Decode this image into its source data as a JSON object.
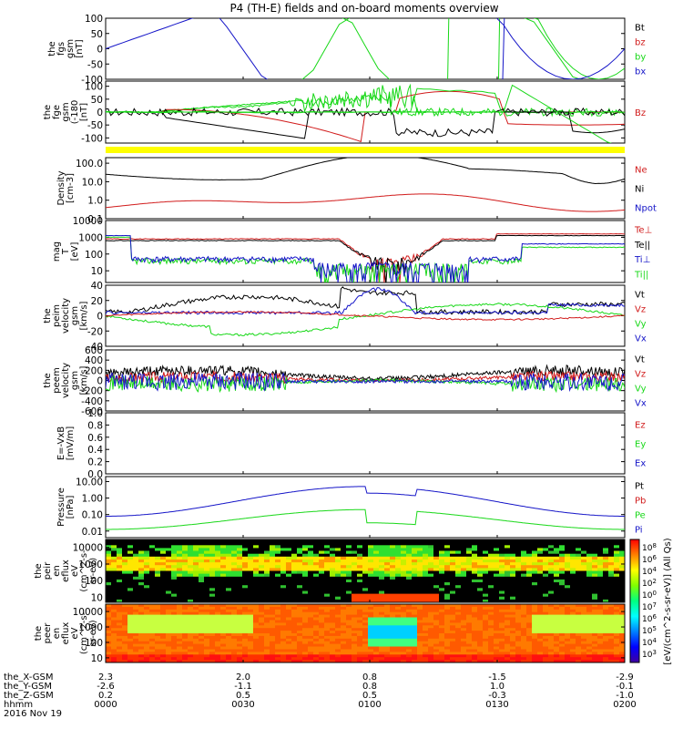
{
  "title": "P4 (TH-E) fields and on-board moments overview",
  "colors": {
    "black": "#000000",
    "red": "#d11b1b",
    "green": "#18d818",
    "blue": "#1515c8",
    "yellow": "#ffff00"
  },
  "chart_data": [
    {
      "type": "line",
      "id": "fgs_gsm",
      "ylabel": [
        "the",
        "fgs",
        "gsm",
        "[nT]"
      ],
      "ylim": [
        -100,
        100
      ],
      "ticks": [
        "100",
        "50",
        "0",
        "-50",
        "-100"
      ],
      "tick_values": [
        100,
        50,
        0,
        -50,
        -100
      ],
      "legend": [
        {
          "text": "Bt",
          "color": "black"
        },
        {
          "text": "bz",
          "color": "red"
        },
        {
          "text": "by",
          "color": "green"
        },
        {
          "text": "bx",
          "color": "blue"
        }
      ]
    },
    {
      "type": "line",
      "id": "fge_gsm",
      "ylabel": [
        "the",
        "fge",
        "gsm",
        "(-180",
        "[nT]"
      ],
      "ylim": [
        -120,
        120
      ],
      "ticks": [
        "100",
        "50",
        "0",
        "-50",
        "-100"
      ],
      "tick_values": [
        100,
        50,
        0,
        -50,
        -100
      ],
      "legend": [
        {
          "text": "Bz",
          "color": "red"
        }
      ]
    },
    {
      "type": "line",
      "id": "density",
      "ylabel": [
        "Density",
        "[cm-3]"
      ],
      "ylim": [
        0.1,
        200
      ],
      "log": true,
      "ticks": [
        "100.0",
        "10.0",
        "1.0",
        "0.1"
      ],
      "tick_values": [
        100,
        10,
        1,
        0.1
      ],
      "legend": [
        {
          "text": "Ne",
          "color": "red"
        },
        {
          "text": "Ni",
          "color": "black"
        },
        {
          "text": "Npot",
          "color": "blue"
        }
      ]
    },
    {
      "type": "line",
      "id": "temperature",
      "ylabel": [
        "mag",
        "T",
        "[eV]"
      ],
      "ylim": [
        2,
        10000
      ],
      "log": true,
      "ticks": [
        "10000",
        "1000",
        "100",
        "10"
      ],
      "tick_values": [
        10000,
        1000,
        100,
        10
      ],
      "legend": [
        {
          "text": "Te⊥",
          "color": "red"
        },
        {
          "text": "Te||",
          "color": "black"
        },
        {
          "text": "Ti⊥",
          "color": "blue"
        },
        {
          "text": "Ti||",
          "color": "green"
        }
      ]
    },
    {
      "type": "line",
      "id": "peim_velocity",
      "ylabel": [
        "the",
        "peim",
        "velocity",
        "gsm",
        "[km/s]"
      ],
      "ylim": [
        -40,
        40
      ],
      "ticks": [
        "40",
        "20",
        "0",
        "-20",
        "-40"
      ],
      "tick_values": [
        40,
        20,
        0,
        -20,
        -40
      ],
      "legend": [
        {
          "text": "Vt",
          "color": "black"
        },
        {
          "text": "Vz",
          "color": "red"
        },
        {
          "text": "Vy",
          "color": "green"
        },
        {
          "text": "Vx",
          "color": "blue"
        }
      ]
    },
    {
      "type": "line",
      "id": "peem_velocity",
      "ylabel": [
        "the",
        "peem",
        "velocity",
        "gsm",
        "[km/s]"
      ],
      "ylim": [
        -600,
        600
      ],
      "ticks": [
        "600",
        "400",
        "200",
        "0",
        "-200",
        "-400",
        "-600"
      ],
      "tick_values": [
        600,
        400,
        200,
        0,
        -200,
        -400,
        -600
      ],
      "legend": [
        {
          "text": "Vt",
          "color": "black"
        },
        {
          "text": "Vz",
          "color": "red"
        },
        {
          "text": "Vy",
          "color": "green"
        },
        {
          "text": "Vx",
          "color": "blue"
        }
      ]
    },
    {
      "type": "line",
      "id": "efield",
      "ylabel": [
        "E=-VxB",
        "[mV/m]"
      ],
      "ylim": [
        0,
        1
      ],
      "ticks": [
        "1.0",
        "0.8",
        "0.6",
        "0.4",
        "0.2",
        "0.0"
      ],
      "tick_values": [
        1.0,
        0.8,
        0.6,
        0.4,
        0.2,
        0.0
      ],
      "legend": [
        {
          "text": "Ez",
          "color": "red"
        },
        {
          "text": "Ey",
          "color": "green"
        },
        {
          "text": "Ex",
          "color": "blue"
        }
      ]
    },
    {
      "type": "line",
      "id": "pressure",
      "ylabel": [
        "Pressure",
        "[nPa]"
      ],
      "ylim": [
        0.004,
        20
      ],
      "log": true,
      "ticks": [
        "10.00",
        "1.00",
        "0.10",
        "0.01"
      ],
      "tick_values": [
        10,
        1,
        0.1,
        0.01
      ],
      "legend": [
        {
          "text": "Pt",
          "color": "black"
        },
        {
          "text": "Pb",
          "color": "red"
        },
        {
          "text": "Pe",
          "color": "green"
        },
        {
          "text": "Pi",
          "color": "blue"
        }
      ]
    },
    {
      "type": "heatmap",
      "id": "peir_spec",
      "ylabel": [
        "the",
        "peir",
        "en",
        "eflux",
        "eV",
        "(cm^2-s-",
        "sr-eV)"
      ],
      "ylim": [
        5,
        30000
      ],
      "log": true,
      "ticks": [
        "10000",
        "1000",
        "100",
        "10"
      ],
      "tick_values": [
        10000,
        1000,
        100,
        10
      ]
    },
    {
      "type": "heatmap",
      "id": "peer_spec",
      "ylabel": [
        "the",
        "peer",
        "en",
        "eflux",
        "eV",
        "(cm^2-s-",
        "sr-eV)"
      ],
      "ylim": [
        5,
        30000
      ],
      "log": true,
      "ticks": [
        "10000",
        "1000",
        "100",
        "10"
      ],
      "tick_values": [
        10000,
        1000,
        100,
        10
      ]
    }
  ],
  "colorbar": {
    "label": "[eV/(cm^2-s-sr-eV)] (All Qs)",
    "ticks": [
      "10^8",
      "10^6",
      "10^4",
      "10^2",
      "10^0",
      "10^7",
      "10^6",
      "10^5",
      "10^4",
      "10^3"
    ]
  },
  "time_axis": {
    "rows": [
      {
        "label": "the_X-GSM",
        "values": [
          "2.3",
          "2.0",
          "0.8",
          "-1.5",
          "-2.9"
        ]
      },
      {
        "label": "the_Y-GSM",
        "values": [
          "-2.6",
          "-1.1",
          "0.8",
          "1.0",
          "-0.1"
        ]
      },
      {
        "label": "the_Z-GSM",
        "values": [
          "0.2",
          "0.5",
          "0.5",
          "-0.3",
          "-1.0"
        ]
      },
      {
        "label": "hhmm",
        "values": [
          "0000",
          "0030",
          "0100",
          "0130",
          "0200"
        ]
      }
    ],
    "date": "2016 Nov 19"
  }
}
